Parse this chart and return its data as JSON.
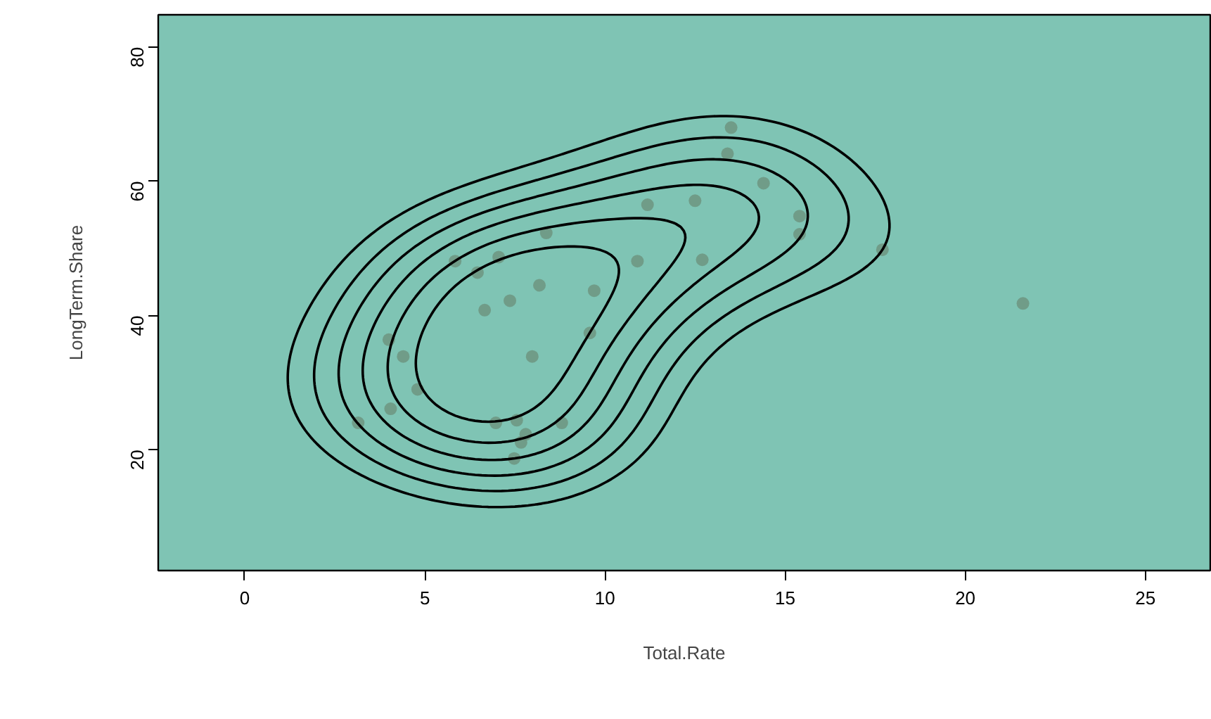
{
  "chart_data": {
    "type": "scatter",
    "xlabel": "Total.Rate",
    "ylabel": "LongTerm.Share",
    "xlim": [
      -2.4,
      26.8
    ],
    "ylim": [
      2,
      84.8
    ],
    "xticks": [
      0,
      5,
      10,
      15,
      20,
      25
    ],
    "yticks": [
      20,
      40,
      60,
      80
    ],
    "grid": false,
    "series": [
      {
        "color": "#6b8f7a",
        "marker": "circle",
        "x": [
          3.15,
          4.05,
          4.0,
          4.4,
          4.8,
          5.84,
          6.46,
          6.66,
          7.05,
          7.36,
          8.18,
          8.37,
          7.98,
          6.97,
          7.55,
          7.8,
          7.67,
          7.48,
          8.8,
          9.7,
          9.58,
          10.9,
          11.18,
          12.5,
          12.7,
          13.4,
          13.5,
          14.4,
          15.4,
          15.4,
          17.7,
          21.6
        ],
        "values": [
          24.0,
          26.1,
          36.4,
          33.9,
          29.0,
          48.1,
          46.4,
          40.8,
          48.7,
          42.2,
          44.5,
          52.3,
          33.9,
          24.0,
          24.4,
          22.3,
          21.1,
          18.7,
          24.0,
          43.7,
          37.4,
          48.1,
          56.5,
          57.1,
          48.3,
          64.1,
          68.0,
          59.7,
          54.8,
          52.1,
          49.8,
          41.8
        ]
      }
    ]
  }
}
